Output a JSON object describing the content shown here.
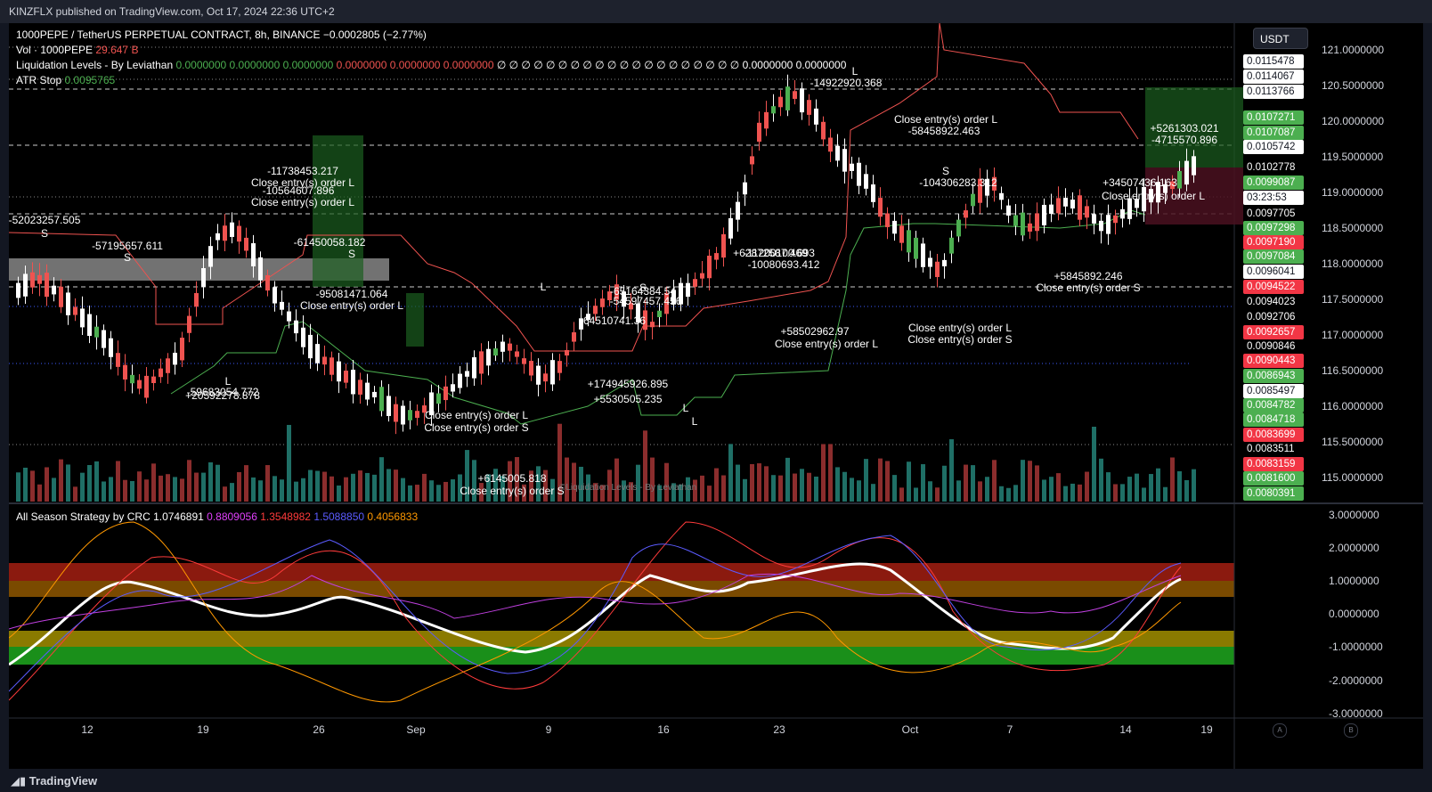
{
  "header": {
    "published": "KINZFLX published on TradingView.com, Oct 17, 2024 22:36 UTC+2"
  },
  "legend": {
    "symbol": "1000PEPE / TetherUS PERPETUAL CONTRACT, 8h, BINANCE",
    "change": "−0.0002805 (−2.77%)",
    "vol_label": "Vol · 1000PEPE",
    "vol_value": "29.647 B",
    "liq_label": "Liquidation Levels - By Leviathan",
    "liq_green": "0.0000000  0.0000000  0.0000000",
    "liq_red": "0.0000000  0.0000000  0.0000000",
    "liq_white": "∅  ∅  ∅  ∅  ∅  ∅  ∅  ∅  ∅  ∅  ∅  ∅  ∅  ∅  ∅  ∅  ∅  ∅  ∅  ∅  0.0000000  0.0000000",
    "atr_label": "ATR Stop",
    "atr_value": "0.0095765"
  },
  "currency_button": "USDT",
  "price_axis": [
    "121.0000000",
    "120.5000000",
    "120.0000000",
    "119.5000000",
    "119.0000000",
    "118.5000000",
    "118.0000000",
    "117.5000000",
    "117.0000000",
    "116.5000000",
    "116.0000000",
    "115.5000000",
    "115.0000000"
  ],
  "price_labels": [
    {
      "text": "0.0115478",
      "bg": "#ffffff",
      "fg": "#131722"
    },
    {
      "text": "0.0114067",
      "bg": "#ffffff",
      "fg": "#131722"
    },
    {
      "text": "0.0113766",
      "bg": "#ffffff",
      "fg": "#131722"
    },
    {
      "text": "0.0107271",
      "bg": "#4caf50",
      "fg": "#ffffff"
    },
    {
      "text": "0.0107087",
      "bg": "#4caf50",
      "fg": "#ffffff"
    },
    {
      "text": "0.0105742",
      "bg": "#ffffff",
      "fg": "#131722"
    },
    {
      "text": "0.0102778",
      "bg": "#000000",
      "fg": "#ffffff"
    },
    {
      "text": "0.0099087",
      "bg": "#4caf50",
      "fg": "#ffffff"
    },
    {
      "text": "03:23:53",
      "bg": "#ffffff",
      "fg": "#131722"
    },
    {
      "text": "0.0097705",
      "bg": "#000000",
      "fg": "#ffffff"
    },
    {
      "text": "0.0097298",
      "bg": "#4caf50",
      "fg": "#ffffff"
    },
    {
      "text": "0.0097190",
      "bg": "#f23645",
      "fg": "#ffffff"
    },
    {
      "text": "0.0097084",
      "bg": "#4caf50",
      "fg": "#ffffff"
    },
    {
      "text": "0.0096041",
      "bg": "#ffffff",
      "fg": "#131722"
    },
    {
      "text": "0.0094522",
      "bg": "#f23645",
      "fg": "#ffffff"
    },
    {
      "text": "0.0094023",
      "bg": "#000000",
      "fg": "#ffffff"
    },
    {
      "text": "0.0092706",
      "bg": "#000000",
      "fg": "#ffffff"
    },
    {
      "text": "0.0092657",
      "bg": "#f23645",
      "fg": "#ffffff"
    },
    {
      "text": "0.0090846",
      "bg": "#000000",
      "fg": "#ffffff"
    },
    {
      "text": "0.0090443",
      "bg": "#f23645",
      "fg": "#ffffff"
    },
    {
      "text": "0.0086943",
      "bg": "#4caf50",
      "fg": "#ffffff"
    },
    {
      "text": "0.0085497",
      "bg": "#ffffff",
      "fg": "#131722"
    },
    {
      "text": "0.0084782",
      "bg": "#4caf50",
      "fg": "#ffffff"
    },
    {
      "text": "0.0084718",
      "bg": "#4caf50",
      "fg": "#ffffff"
    },
    {
      "text": "0.0083699",
      "bg": "#f23645",
      "fg": "#ffffff"
    },
    {
      "text": "0.0083511",
      "bg": "#000000",
      "fg": "#ffffff"
    },
    {
      "text": "0.0083159",
      "bg": "#f23645",
      "fg": "#ffffff"
    },
    {
      "text": "0.0081600",
      "bg": "#4caf50",
      "fg": "#ffffff"
    },
    {
      "text": "0.0080391",
      "bg": "#4caf50",
      "fg": "#ffffff"
    }
  ],
  "annotations": [
    "-52023257.505",
    "S",
    "-57195657.611",
    "S",
    "-11738453.217",
    "Close entry(s) order L",
    "-10564607.896",
    "Close entry(s) order L",
    "-61450058.182",
    "S",
    "-95081471.064",
    "Close entry(s) order L",
    "-59683054.772",
    "+20592278.878",
    "L",
    "-64510741.36",
    "S",
    "-65164384.54",
    "-54597457.456",
    "Close entry(s) order L",
    "Close entry(s) order S",
    "+6145005.818",
    "Close entry(s) order S",
    "+5530505.235",
    "+174945926.895",
    "L",
    "L",
    "+62872587.469",
    "-11200100.693",
    "-10080693.412",
    "Close entry(s) order L",
    "+58502962.97",
    "L",
    "-14922920.368",
    "Close entry(s) order L",
    "-58458922.463",
    "S",
    "-104306283.312",
    "Close entry(s) order L",
    "Close entry(s) order S",
    "+5845892.246",
    "Close entry(s) order S",
    "+5261303.021",
    "-4715570.896",
    "Close entry(s) order L",
    "+34507436.163",
    "L"
  ],
  "watermark": "©Liquidation Levels - By Leviathan",
  "oscillator": {
    "title": "All Season Strategy by CRC",
    "v1": "1.0746891",
    "v2": "0.8809056",
    "v3": "1.3548982",
    "v4": "1.5088850",
    "v5": "0.4056833",
    "axis": [
      "3.0000000",
      "2.0000000",
      "1.0000000",
      "0.0000000",
      "-1.0000000",
      "-2.0000000",
      "-3.0000000"
    ]
  },
  "time_axis": [
    "12",
    "19",
    "26",
    "Sep",
    "9",
    "16",
    "23",
    "Oct",
    "7",
    "14",
    "19"
  ],
  "footer": {
    "logo": "TradingView",
    "btn_a": "A",
    "btn_b": "B"
  },
  "colors": {
    "bg": "#000000",
    "up": "#ffffff",
    "down": "#ef5350",
    "green": "#4caf50",
    "vol_up": "#26a69a",
    "vol_down": "#ef5350"
  }
}
